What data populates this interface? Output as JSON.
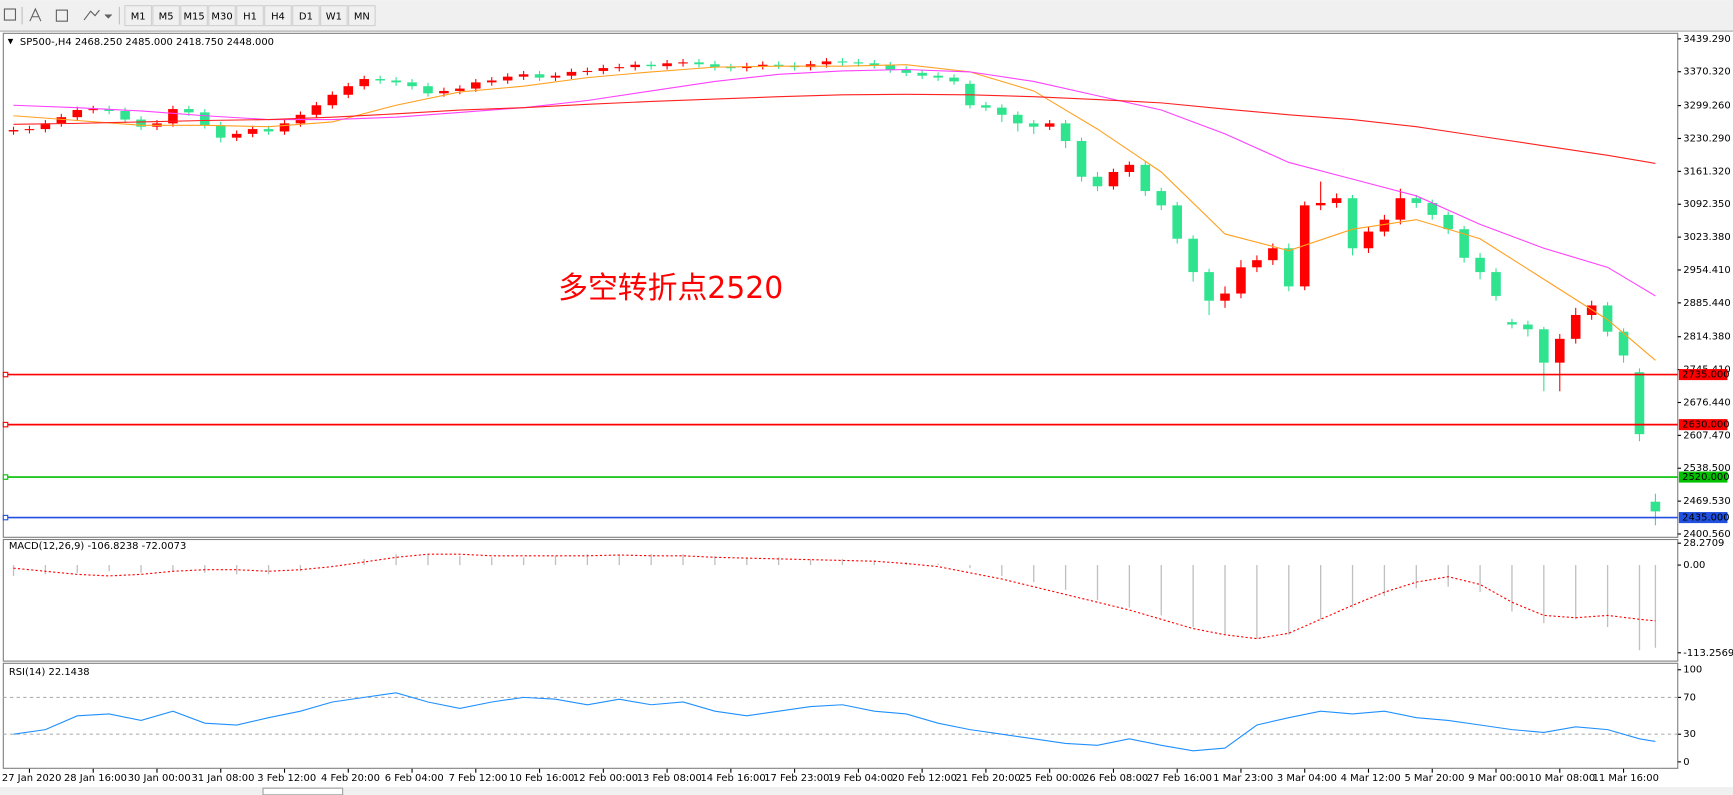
{
  "toolbar": {
    "timeframes": [
      "M1",
      "M5",
      "M15",
      "M30",
      "H1",
      "H4",
      "D1",
      "W1",
      "MN"
    ]
  },
  "chart_data": [
    {
      "type": "candlestick",
      "title": "SP500-,H4  2468.250 2485.000 2418.750 2448.000",
      "annotation": "多空转折点2520",
      "up_color": "#ff0000",
      "down_color": "#2fe38f",
      "xlim": [
        -0.64,
        104.4
      ],
      "ylim": [
        2393.6,
        3450.9
      ],
      "yticks": [
        {
          "value": 3439.29,
          "label": "3439.290"
        },
        {
          "value": 3370.32,
          "label": "3370.320"
        },
        {
          "value": 3299.26,
          "label": "3299.260"
        },
        {
          "value": 3230.29,
          "label": "3230.290"
        },
        {
          "value": 3161.32,
          "label": "3161.320"
        },
        {
          "value": 3092.35,
          "label": "3092.350"
        },
        {
          "value": 3023.38,
          "label": "3023.380"
        },
        {
          "value": 2954.41,
          "label": "2954.410"
        },
        {
          "value": 2885.44,
          "label": "2885.440"
        },
        {
          "value": 2814.38,
          "label": "2814.380"
        },
        {
          "value": 2745.41,
          "label": "2745.410"
        },
        {
          "value": 2676.44,
          "label": "2676.440"
        },
        {
          "value": 2607.47,
          "label": "2607.470"
        },
        {
          "value": 2538.5,
          "label": "2538.500"
        },
        {
          "value": 2469.53,
          "label": "2469.530"
        },
        {
          "value": 2400.56,
          "label": "2400.560"
        }
      ],
      "xticks": [
        {
          "value": 1,
          "label": "27 Jan 2020"
        },
        {
          "value": 5,
          "label": "28 Jan 16:00"
        },
        {
          "value": 9,
          "label": "30 Jan 00:00"
        },
        {
          "value": 13,
          "label": "31 Jan 08:00"
        },
        {
          "value": 17,
          "label": "3 Feb 12:00"
        },
        {
          "value": 21,
          "label": "4 Feb 20:00"
        },
        {
          "value": 25,
          "label": "6 Feb 04:00"
        },
        {
          "value": 29,
          "label": "7 Feb 12:00"
        },
        {
          "value": 33,
          "label": "10 Feb 16:00"
        },
        {
          "value": 37,
          "label": "12 Feb 00:00"
        },
        {
          "value": 41,
          "label": "13 Feb 08:00"
        },
        {
          "value": 45,
          "label": "14 Feb 16:00"
        },
        {
          "value": 49,
          "label": "17 Feb 23:00"
        },
        {
          "value": 53,
          "label": "19 Feb 04:00"
        },
        {
          "value": 57,
          "label": "20 Feb 12:00"
        },
        {
          "value": 61,
          "label": "21 Feb 20:00"
        },
        {
          "value": 65,
          "label": "25 Feb 00:00"
        },
        {
          "value": 69,
          "label": "26 Feb 08:00"
        },
        {
          "value": 73,
          "label": "27 Feb 16:00"
        },
        {
          "value": 77,
          "label": "1 Mar 23:00"
        },
        {
          "value": 81,
          "label": "3 Mar 04:00"
        },
        {
          "value": 85,
          "label": "4 Mar 12:00"
        },
        {
          "value": 89,
          "label": "5 Mar 20:00"
        },
        {
          "value": 93,
          "label": "9 Mar 00:00"
        },
        {
          "value": 97,
          "label": "10 Mar 08:00"
        },
        {
          "value": 101,
          "label": "11 Mar 16:00"
        }
      ],
      "open": [
        3245,
        3248,
        3250,
        3262,
        3275,
        3290,
        3292,
        3288,
        3270,
        3255,
        3262,
        3292,
        3285,
        3258,
        3232,
        3240,
        3250,
        3245,
        3262,
        3280,
        3300,
        3322,
        3340,
        3355,
        3352,
        3348,
        3340,
        3325,
        3330,
        3335,
        3348,
        3352,
        3360,
        3365,
        3358,
        3362,
        3370,
        3372,
        3378,
        3380,
        3385,
        3382,
        3388,
        3390,
        3386,
        3380,
        3378,
        3382,
        3385,
        3383,
        3380,
        3386,
        3392,
        3390,
        3388,
        3384,
        3375,
        3368,
        3362,
        3358,
        3345,
        3300,
        3295,
        3280,
        3262,
        3255,
        3262,
        3225,
        3150,
        3130,
        3160,
        3175,
        3120,
        3090,
        3020,
        2950,
        2890,
        2905,
        2960,
        2975,
        3000,
        2920,
        3090,
        3095,
        3105,
        3000,
        3035,
        3060,
        3105,
        3095,
        3070,
        3040,
        2980,
        2950,
        2845,
        2840,
        2830,
        2760,
        2810,
        2860,
        2880,
        2825,
        2740,
        2468.25
      ],
      "high": [
        3255,
        3257,
        3269,
        3282,
        3297,
        3299,
        3299,
        3295,
        3277,
        3269,
        3299,
        3299,
        3292,
        3265,
        3247,
        3257,
        3257,
        3269,
        3287,
        3307,
        3329,
        3347,
        3362,
        3362,
        3359,
        3355,
        3347,
        3337,
        3342,
        3355,
        3359,
        3367,
        3372,
        3372,
        3369,
        3377,
        3379,
        3385,
        3387,
        3392,
        3392,
        3395,
        3397,
        3397,
        3393,
        3387,
        3389,
        3392,
        3392,
        3390,
        3393,
        3399,
        3399,
        3397,
        3395,
        3391,
        3382,
        3375,
        3369,
        3365,
        3352,
        3307,
        3302,
        3287,
        3269,
        3269,
        3269,
        3232,
        3160,
        3167,
        3182,
        3182,
        3127,
        3097,
        3027,
        2957,
        2920,
        2975,
        2985,
        3010,
        3010,
        3098,
        3140,
        3115,
        3112,
        3045,
        3070,
        3125,
        3112,
        3102,
        3077,
        3047,
        2990,
        2958,
        2852,
        2848,
        2835,
        2820,
        2875,
        2890,
        2887,
        2832,
        2748,
        2485
      ],
      "low": [
        3238,
        3241,
        3243,
        3255,
        3268,
        3283,
        3281,
        3263,
        3248,
        3248,
        3255,
        3278,
        3251,
        3222,
        3225,
        3233,
        3238,
        3238,
        3255,
        3273,
        3293,
        3315,
        3333,
        3345,
        3341,
        3333,
        3318,
        3318,
        3323,
        3328,
        3341,
        3345,
        3353,
        3351,
        3351,
        3355,
        3363,
        3365,
        3371,
        3373,
        3375,
        3375,
        3381,
        3379,
        3373,
        3371,
        3371,
        3375,
        3376,
        3373,
        3373,
        3379,
        3383,
        3381,
        3377,
        3368,
        3361,
        3355,
        3351,
        3343,
        3293,
        3288,
        3265,
        3245,
        3240,
        3248,
        3210,
        3140,
        3120,
        3123,
        3150,
        3110,
        3080,
        3010,
        2930,
        2860,
        2875,
        2895,
        2950,
        2965,
        2910,
        2912,
        3080,
        3085,
        2985,
        2990,
        3025,
        3050,
        3085,
        3060,
        3030,
        2970,
        2935,
        2890,
        2832,
        2815,
        2700,
        2700,
        2800,
        2850,
        2815,
        2760,
        2595,
        2418.75
      ],
      "close": [
        3248,
        3250,
        3262,
        3275,
        3290,
        3292,
        3288,
        3270,
        3255,
        3262,
        3292,
        3285,
        3258,
        3232,
        3240,
        3250,
        3245,
        3262,
        3280,
        3300,
        3322,
        3340,
        3355,
        3352,
        3348,
        3340,
        3325,
        3330,
        3335,
        3348,
        3352,
        3360,
        3365,
        3358,
        3362,
        3370,
        3372,
        3378,
        3380,
        3385,
        3382,
        3388,
        3390,
        3386,
        3380,
        3378,
        3382,
        3385,
        3383,
        3380,
        3386,
        3392,
        3390,
        3388,
        3384,
        3375,
        3368,
        3362,
        3358,
        3350,
        3300,
        3295,
        3280,
        3262,
        3255,
        3262,
        3225,
        3150,
        3130,
        3160,
        3175,
        3120,
        3090,
        3020,
        2950,
        2890,
        2905,
        2960,
        2975,
        3000,
        2920,
        3090,
        3095,
        3105,
        3000,
        3035,
        3060,
        3105,
        3095,
        3070,
        3040,
        2980,
        2950,
        2900,
        2840,
        2830,
        2760,
        2810,
        2860,
        2880,
        2825,
        2775,
        2610,
        2448
      ],
      "lines": [
        {
          "color": "#ffa020",
          "x": [
            0,
            4,
            8,
            12,
            16,
            20,
            24,
            28,
            32,
            36,
            40,
            44,
            48,
            52,
            56,
            60,
            64,
            68,
            72,
            76,
            80,
            84,
            88,
            92,
            96,
            100,
            103
          ],
          "values": [
            3278,
            3268,
            3258,
            3258,
            3255,
            3265,
            3300,
            3328,
            3340,
            3358,
            3370,
            3380,
            3382,
            3382,
            3385,
            3370,
            3330,
            3250,
            3160,
            3030,
            2995,
            3040,
            3060,
            3020,
            2935,
            2850,
            2765
          ]
        },
        {
          "color": "#ff40ff",
          "x": [
            0,
            4,
            8,
            12,
            16,
            20,
            24,
            28,
            32,
            36,
            40,
            44,
            48,
            52,
            56,
            60,
            64,
            68,
            72,
            76,
            80,
            84,
            88,
            92,
            96,
            100,
            103
          ],
          "values": [
            3300,
            3295,
            3288,
            3278,
            3270,
            3270,
            3275,
            3285,
            3295,
            3310,
            3330,
            3350,
            3365,
            3372,
            3375,
            3370,
            3350,
            3320,
            3290,
            3240,
            3180,
            3145,
            3110,
            3050,
            3000,
            2960,
            2900
          ]
        },
        {
          "color": "#ff2020",
          "x": [
            0,
            4,
            8,
            12,
            16,
            20,
            24,
            28,
            32,
            36,
            40,
            44,
            48,
            52,
            56,
            60,
            64,
            68,
            72,
            76,
            80,
            84,
            88,
            92,
            96,
            100,
            103
          ],
          "values": [
            3260,
            3262,
            3265,
            3268,
            3270,
            3275,
            3282,
            3290,
            3295,
            3302,
            3308,
            3313,
            3318,
            3322,
            3323,
            3322,
            3318,
            3312,
            3305,
            3292,
            3280,
            3270,
            3255,
            3235,
            3215,
            3195,
            3178
          ]
        }
      ],
      "levels": [
        {
          "value": 2735,
          "label": "2735.000",
          "color": "#ff0000"
        },
        {
          "value": 2630,
          "label": "2630.000",
          "color": "#ff0000"
        },
        {
          "value": 2520,
          "label": "2520.000",
          "color": "#00c000"
        },
        {
          "value": 2435,
          "label": "2435.000",
          "color": "#2050e0"
        }
      ]
    },
    {
      "type": "macd",
      "title": "MACD(12,26,9) -106.8238 -72.0073",
      "histogram_color": "#c0c0c0",
      "signal_color": "#ff0000",
      "ylim": [
        -124,
        33
      ],
      "yticks": [
        28.2709,
        {
          "value": 0,
          "label": "0.00"
        },
        -113.2569
      ],
      "x": [
        0,
        2,
        4,
        6,
        8,
        10,
        12,
        14,
        16,
        18,
        20,
        22,
        24,
        26,
        28,
        30,
        32,
        34,
        36,
        38,
        40,
        42,
        44,
        46,
        48,
        50,
        52,
        54,
        56,
        58,
        60,
        62,
        64,
        66,
        68,
        70,
        72,
        74,
        76,
        78,
        80,
        82,
        84,
        86,
        88,
        90,
        92,
        94,
        96,
        98,
        100,
        102,
        103
      ],
      "histogram": [
        -14,
        -12,
        -10,
        -8,
        -10,
        -8,
        -10,
        -12,
        -12,
        -8,
        0,
        8,
        14,
        14,
        12,
        10,
        10,
        12,
        14,
        14,
        14,
        14,
        12,
        10,
        10,
        8,
        8,
        6,
        4,
        2,
        -4,
        -14,
        -22,
        -32,
        -45,
        -55,
        -65,
        -80,
        -90,
        -95,
        -90,
        -70,
        -55,
        -40,
        -30,
        -28,
        -35,
        -60,
        -75,
        -70,
        -80,
        -110,
        -106.8238
      ],
      "signal": [
        -4,
        -8,
        -12,
        -14,
        -12,
        -8,
        -6,
        -6,
        -8,
        -6,
        -2,
        4,
        10,
        14,
        14,
        12,
        12,
        12,
        12,
        13,
        12,
        12,
        10,
        9,
        8,
        7,
        6,
        5,
        2,
        -2,
        -10,
        -18,
        -28,
        -38,
        -48,
        -58,
        -70,
        -82,
        -90,
        -95,
        -88,
        -70,
        -52,
        -35,
        -22,
        -15,
        -25,
        -48,
        -65,
        -68,
        -65,
        -70,
        -72.0073
      ]
    },
    {
      "type": "rsi",
      "title": "RSI(14) 22.1438",
      "color": "#2090ff",
      "ylim": [
        -7,
        107
      ],
      "yticks": [
        100,
        70,
        30,
        0
      ],
      "levels": [
        70,
        30
      ],
      "x": [
        0,
        2,
        4,
        6,
        8,
        10,
        12,
        14,
        16,
        18,
        20,
        22,
        24,
        26,
        28,
        30,
        32,
        34,
        36,
        38,
        40,
        42,
        44,
        46,
        48,
        50,
        52,
        54,
        56,
        58,
        60,
        62,
        64,
        66,
        68,
        70,
        72,
        74,
        76,
        78,
        80,
        82,
        84,
        86,
        88,
        90,
        92,
        94,
        96,
        98,
        100,
        102,
        103
      ],
      "values": [
        30,
        35,
        50,
        52,
        45,
        55,
        42,
        40,
        48,
        55,
        65,
        70,
        75,
        65,
        58,
        65,
        70,
        68,
        62,
        68,
        62,
        65,
        55,
        50,
        55,
        60,
        62,
        55,
        52,
        42,
        35,
        30,
        25,
        20,
        18,
        25,
        18,
        12,
        15,
        40,
        48,
        55,
        52,
        55,
        48,
        45,
        40,
        35,
        32,
        38,
        35,
        25,
        22.1438
      ]
    }
  ]
}
